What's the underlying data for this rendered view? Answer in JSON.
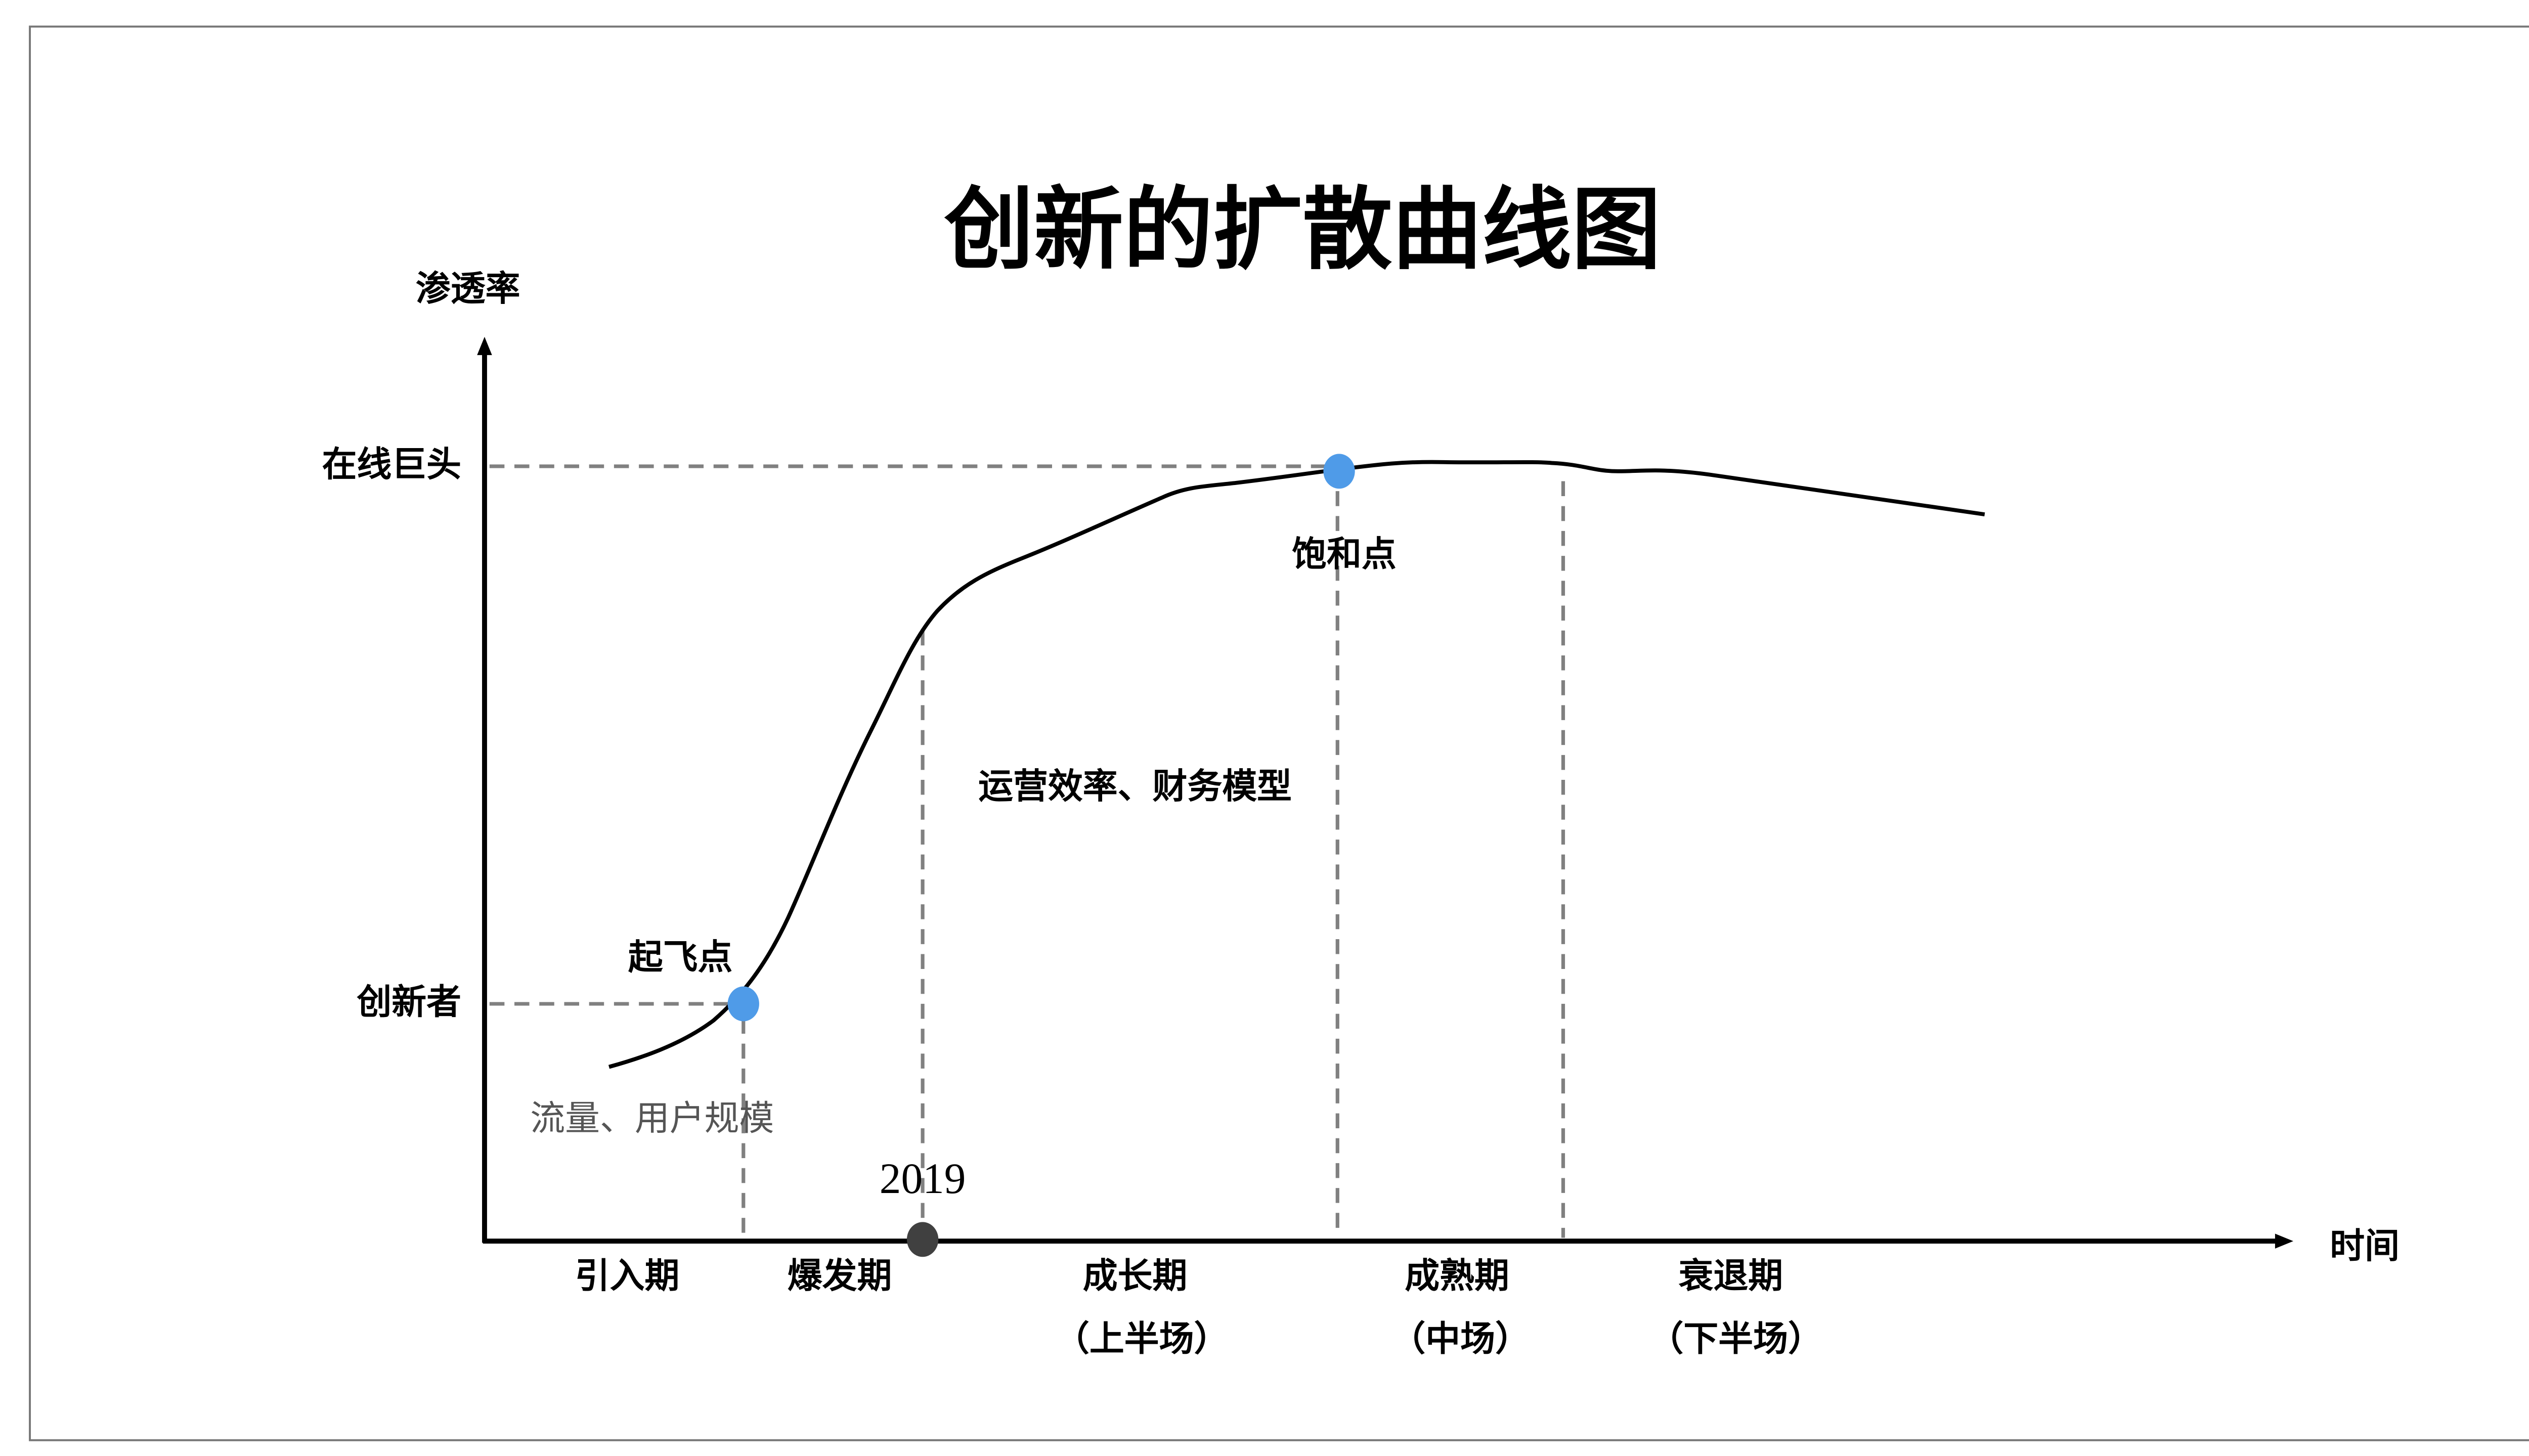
{
  "title": "创新的扩散曲线图",
  "axes": {
    "y_label": "渗透率",
    "x_label": "时间",
    "y_levels": [
      "在线巨头",
      "创新者"
    ]
  },
  "points": {
    "takeoff": {
      "label": "起飞点",
      "color": "#4f9be8"
    },
    "saturation": {
      "label": "饱和点",
      "color": "#4f9be8"
    },
    "year_marker": {
      "label": "2019",
      "color": "#404040"
    }
  },
  "annotations": {
    "early": "流量、用户规模",
    "growth": "运营效率、财务模型"
  },
  "stages": [
    {
      "name": "引入期",
      "sub": ""
    },
    {
      "name": "爆发期",
      "sub": ""
    },
    {
      "name": "成长期",
      "sub": "（上半场）"
    },
    {
      "name": "成熟期",
      "sub": "（中场）"
    },
    {
      "name": "衰退期",
      "sub": "（下半场）"
    }
  ]
}
